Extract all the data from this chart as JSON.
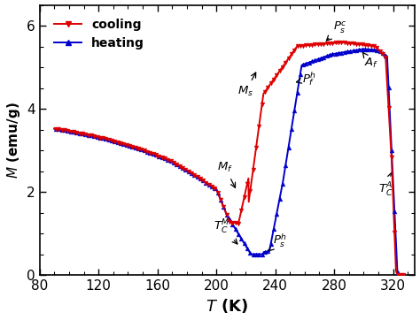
{
  "xlabel": "T (K)",
  "ylabel": "M (emu/g)",
  "xlim": [
    80,
    335
  ],
  "ylim": [
    0,
    6.5
  ],
  "xticks": [
    80,
    120,
    160,
    200,
    240,
    280,
    320
  ],
  "yticks": [
    0,
    2,
    4,
    6
  ],
  "cooling_color": "#dd0000",
  "heating_color": "#0000cc",
  "bg_color": "#ffffff",
  "legend_cooling": "cooling",
  "legend_heating": "heating"
}
